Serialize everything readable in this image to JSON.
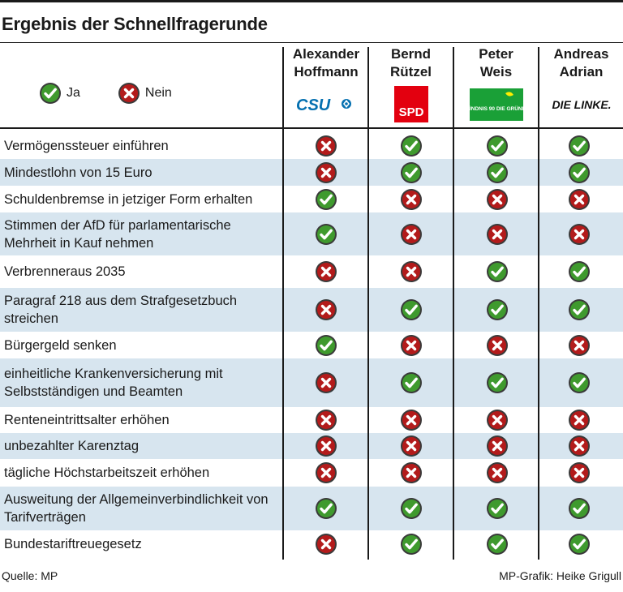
{
  "title": "Ergebnis der Schnellfragerunde",
  "legend": {
    "yes_label": "Ja",
    "no_label": "Nein"
  },
  "candidates": [
    {
      "first": "Alexander",
      "last": "Hoffmann",
      "party": "CSU",
      "logo_text": "CSU"
    },
    {
      "first": "Bernd",
      "last": "Rützel",
      "party": "SPD",
      "logo_text": "SPD"
    },
    {
      "first": "Peter",
      "last": "Weis",
      "party": "Bündnis 90 Die Grünen",
      "logo_text": "BÜNDNIS 90 DIE GRÜNEN"
    },
    {
      "first": "Andreas",
      "last": "Adrian",
      "party": "Die Linke",
      "logo_text": "DIE LINKE."
    }
  ],
  "questions": [
    {
      "text": "Vermögenssteuer einführen",
      "answers": [
        "no",
        "yes",
        "yes",
        "yes"
      ]
    },
    {
      "text": "Mindestlohn von 15 Euro",
      "answers": [
        "no",
        "yes",
        "yes",
        "yes"
      ]
    },
    {
      "text": "Schuldenbremse in jetziger Form erhalten",
      "answers": [
        "yes",
        "no",
        "no",
        "no"
      ]
    },
    {
      "text": "Stimmen der AfD für parlamentarische Mehrheit in Kauf nehmen",
      "answers": [
        "yes",
        "no",
        "no",
        "no"
      ]
    },
    {
      "text": "Verbrenneraus 2035",
      "answers": [
        "no",
        "no",
        "yes",
        "yes"
      ]
    },
    {
      "text": "Paragraf 218 aus dem Strafgesetzbuch streichen",
      "answers": [
        "no",
        "yes",
        "yes",
        "yes"
      ]
    },
    {
      "text": "Bürgergeld senken",
      "answers": [
        "yes",
        "no",
        "no",
        "no"
      ]
    },
    {
      "text": "einheitliche Krankenversicherung mit Selbstständigen und Beamten",
      "answers": [
        "no",
        "yes",
        "yes",
        "yes"
      ]
    },
    {
      "text": "Renteneintrittsalter erhöhen",
      "answers": [
        "no",
        "no",
        "no",
        "no"
      ]
    },
    {
      "text": "unbezahlter Karenztag",
      "answers": [
        "no",
        "no",
        "no",
        "no"
      ]
    },
    {
      "text": "tägliche Höchstarbeitszeit erhöhen",
      "answers": [
        "no",
        "no",
        "no",
        "no"
      ]
    },
    {
      "text": "Ausweitung der Allgemeinverbindlichkeit von Tarifverträgen",
      "answers": [
        "yes",
        "yes",
        "yes",
        "yes"
      ]
    },
    {
      "text": "Bundestariftreuegesetz",
      "answers": [
        "no",
        "yes",
        "yes",
        "yes"
      ]
    }
  ],
  "footer": {
    "source": "Quelle: MP",
    "credit": "MP-Grafik: Heike Grigull"
  },
  "colors": {
    "yes": "#3f9a2e",
    "no": "#b31b1b",
    "row_shade": "#d7e5ef",
    "spd_red": "#e3000f",
    "csu_blue": "#0570b0",
    "greens": "#1aa037"
  }
}
